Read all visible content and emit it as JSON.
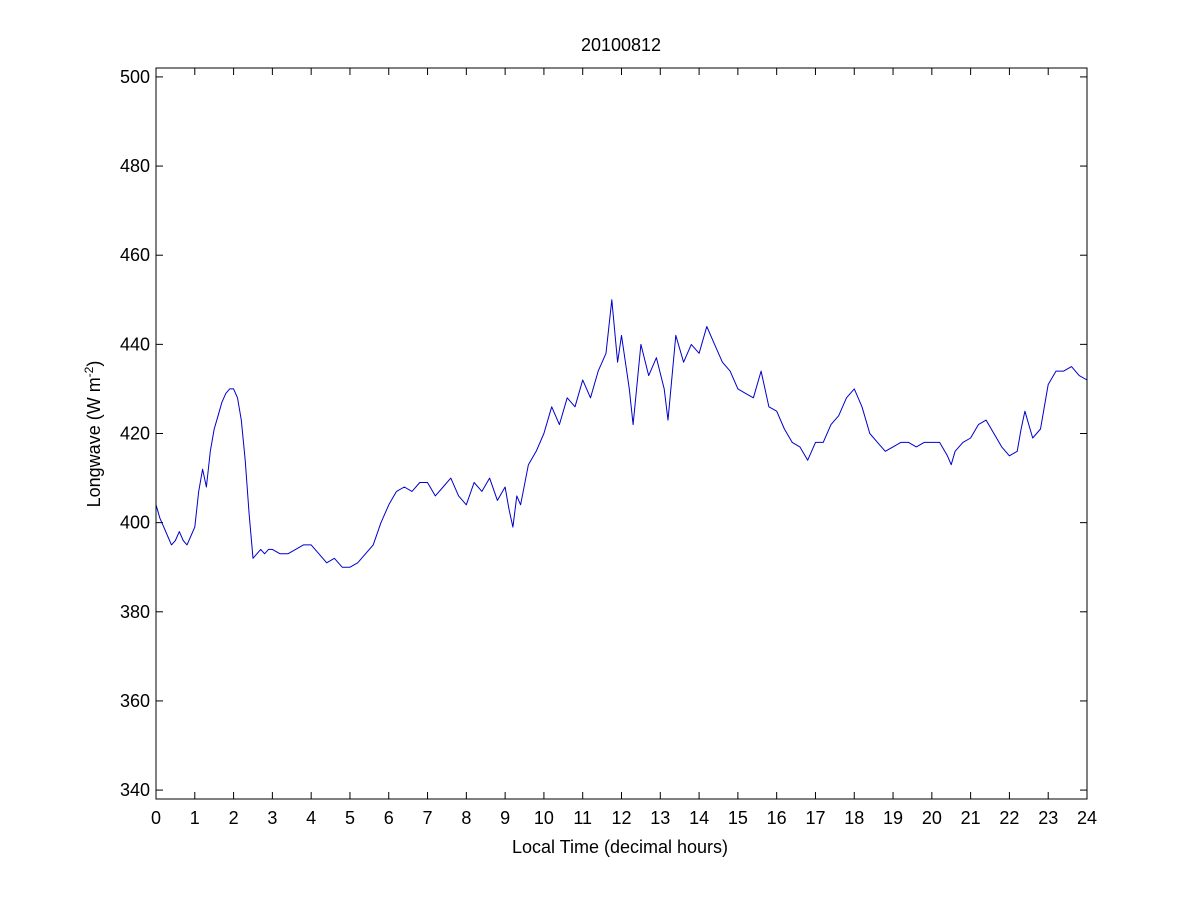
{
  "chart_data": {
    "type": "line",
    "title": "20100812",
    "xlabel": "Local Time (decimal hours)",
    "ylabel": {
      "main": "Longwave (W m",
      "superscript": "-2",
      "close": ")"
    },
    "xlim": [
      0,
      24
    ],
    "ylim": [
      338,
      502
    ],
    "xticks": [
      0,
      1,
      2,
      3,
      4,
      5,
      6,
      7,
      8,
      9,
      10,
      11,
      12,
      13,
      14,
      15,
      16,
      17,
      18,
      19,
      20,
      21,
      22,
      23,
      24
    ],
    "yticks": [
      340,
      360,
      380,
      400,
      420,
      440,
      460,
      480,
      500
    ],
    "grid": false,
    "series": [
      {
        "color": "#0000cc",
        "points": [
          [
            0.0,
            404
          ],
          [
            0.1,
            401
          ],
          [
            0.2,
            399
          ],
          [
            0.3,
            397
          ],
          [
            0.4,
            395
          ],
          [
            0.5,
            396
          ],
          [
            0.6,
            398
          ],
          [
            0.7,
            396
          ],
          [
            0.8,
            395
          ],
          [
            0.9,
            397
          ],
          [
            1.0,
            399
          ],
          [
            1.1,
            407
          ],
          [
            1.2,
            412
          ],
          [
            1.3,
            408
          ],
          [
            1.4,
            416
          ],
          [
            1.5,
            421
          ],
          [
            1.6,
            424
          ],
          [
            1.7,
            427
          ],
          [
            1.8,
            429
          ],
          [
            1.9,
            430
          ],
          [
            2.0,
            430
          ],
          [
            2.1,
            428
          ],
          [
            2.2,
            423
          ],
          [
            2.3,
            414
          ],
          [
            2.4,
            402
          ],
          [
            2.5,
            392
          ],
          [
            2.6,
            393
          ],
          [
            2.7,
            394
          ],
          [
            2.8,
            393
          ],
          [
            2.9,
            394
          ],
          [
            3.0,
            394
          ],
          [
            3.2,
            393
          ],
          [
            3.4,
            393
          ],
          [
            3.6,
            394
          ],
          [
            3.8,
            395
          ],
          [
            4.0,
            395
          ],
          [
            4.2,
            393
          ],
          [
            4.4,
            391
          ],
          [
            4.6,
            392
          ],
          [
            4.8,
            390
          ],
          [
            5.0,
            390
          ],
          [
            5.2,
            391
          ],
          [
            5.4,
            393
          ],
          [
            5.6,
            395
          ],
          [
            5.8,
            400
          ],
          [
            6.0,
            404
          ],
          [
            6.2,
            407
          ],
          [
            6.4,
            408
          ],
          [
            6.6,
            407
          ],
          [
            6.8,
            409
          ],
          [
            7.0,
            409
          ],
          [
            7.2,
            406
          ],
          [
            7.4,
            408
          ],
          [
            7.6,
            410
          ],
          [
            7.8,
            406
          ],
          [
            8.0,
            404
          ],
          [
            8.2,
            409
          ],
          [
            8.4,
            407
          ],
          [
            8.6,
            410
          ],
          [
            8.8,
            405
          ],
          [
            9.0,
            408
          ],
          [
            9.1,
            403
          ],
          [
            9.2,
            399
          ],
          [
            9.3,
            406
          ],
          [
            9.4,
            404
          ],
          [
            9.6,
            413
          ],
          [
            9.8,
            416
          ],
          [
            10.0,
            420
          ],
          [
            10.2,
            426
          ],
          [
            10.4,
            422
          ],
          [
            10.6,
            428
          ],
          [
            10.8,
            426
          ],
          [
            11.0,
            432
          ],
          [
            11.2,
            428
          ],
          [
            11.4,
            434
          ],
          [
            11.6,
            438
          ],
          [
            11.75,
            450
          ],
          [
            11.9,
            436
          ],
          [
            12.0,
            442
          ],
          [
            12.2,
            430
          ],
          [
            12.3,
            422
          ],
          [
            12.5,
            440
          ],
          [
            12.7,
            433
          ],
          [
            12.9,
            437
          ],
          [
            13.1,
            430
          ],
          [
            13.2,
            423
          ],
          [
            13.4,
            442
          ],
          [
            13.6,
            436
          ],
          [
            13.8,
            440
          ],
          [
            14.0,
            438
          ],
          [
            14.2,
            444
          ],
          [
            14.4,
            440
          ],
          [
            14.6,
            436
          ],
          [
            14.8,
            434
          ],
          [
            15.0,
            430
          ],
          [
            15.2,
            429
          ],
          [
            15.4,
            428
          ],
          [
            15.6,
            434
          ],
          [
            15.8,
            426
          ],
          [
            16.0,
            425
          ],
          [
            16.2,
            421
          ],
          [
            16.4,
            418
          ],
          [
            16.6,
            417
          ],
          [
            16.8,
            414
          ],
          [
            17.0,
            418
          ],
          [
            17.2,
            418
          ],
          [
            17.4,
            422
          ],
          [
            17.6,
            424
          ],
          [
            17.8,
            428
          ],
          [
            18.0,
            430
          ],
          [
            18.2,
            426
          ],
          [
            18.4,
            420
          ],
          [
            18.6,
            418
          ],
          [
            18.8,
            416
          ],
          [
            19.0,
            417
          ],
          [
            19.2,
            418
          ],
          [
            19.4,
            418
          ],
          [
            19.6,
            417
          ],
          [
            19.8,
            418
          ],
          [
            20.0,
            418
          ],
          [
            20.2,
            418
          ],
          [
            20.4,
            415
          ],
          [
            20.5,
            413
          ],
          [
            20.6,
            416
          ],
          [
            20.8,
            418
          ],
          [
            21.0,
            419
          ],
          [
            21.2,
            422
          ],
          [
            21.4,
            423
          ],
          [
            21.6,
            420
          ],
          [
            21.8,
            417
          ],
          [
            22.0,
            415
          ],
          [
            22.2,
            416
          ],
          [
            22.3,
            421
          ],
          [
            22.4,
            425
          ],
          [
            22.5,
            422
          ],
          [
            22.6,
            419
          ],
          [
            22.8,
            421
          ],
          [
            23.0,
            431
          ],
          [
            23.2,
            434
          ],
          [
            23.4,
            434
          ],
          [
            23.6,
            435
          ],
          [
            23.8,
            433
          ],
          [
            24.0,
            432
          ]
        ]
      }
    ]
  }
}
